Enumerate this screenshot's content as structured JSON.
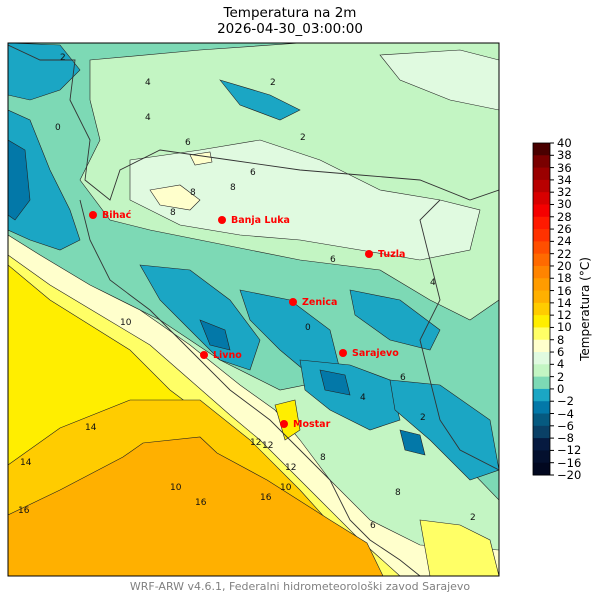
{
  "title": "Temperatura na 2m",
  "datetime": "2026-04-30_03:00:00",
  "colorbar": {
    "label": "Temperatura (°C)",
    "ticks": [
      "40",
      "38",
      "36",
      "34",
      "32",
      "30",
      "28",
      "26",
      "24",
      "22",
      "20",
      "18",
      "16",
      "14",
      "12",
      "10",
      "8",
      "6",
      "4",
      "2",
      "0",
      "−2",
      "−4",
      "−6",
      "−8",
      "−12",
      "−16",
      "−20"
    ],
    "colors_top_to_bottom": [
      "#4a0000",
      "#7a0000",
      "#9a0000",
      "#b80000",
      "#d80000",
      "#f50000",
      "#ff1a00",
      "#ff3200",
      "#ff4f00",
      "#ff6a00",
      "#ff8400",
      "#ff9c00",
      "#ffb000",
      "#ffcc00",
      "#ffee00",
      "#ffff66",
      "#ffffcc",
      "#e0fae0",
      "#c3f5c3",
      "#7dd9b5",
      "#1ba6c4",
      "#0378a8",
      "#065a80",
      "#0a4066",
      "#061a40",
      "#04102e",
      "#020820"
    ]
  },
  "cities": [
    {
      "name": "Bihać"
    },
    {
      "name": "Banja Luka"
    },
    {
      "name": "Tuzla"
    },
    {
      "name": "Zenica"
    },
    {
      "name": "Livno"
    },
    {
      "name": "Sarajevo"
    },
    {
      "name": "Mostar"
    }
  ],
  "city_color": "#ff0000",
  "contour_labels": [
    "2",
    "0",
    "4",
    "4",
    "2",
    "6",
    "6",
    "8",
    "8",
    "8",
    "6",
    "4",
    "2",
    "0",
    "2",
    "6",
    "8",
    "10",
    "10",
    "12",
    "12",
    "14",
    "14",
    "16",
    "16",
    "16",
    "8",
    "6",
    "4",
    "2",
    "10",
    "12"
  ],
  "footer": "WRF-ARW v4.6.1, Federalni hidrometeorološki zavod Sarajevo"
}
